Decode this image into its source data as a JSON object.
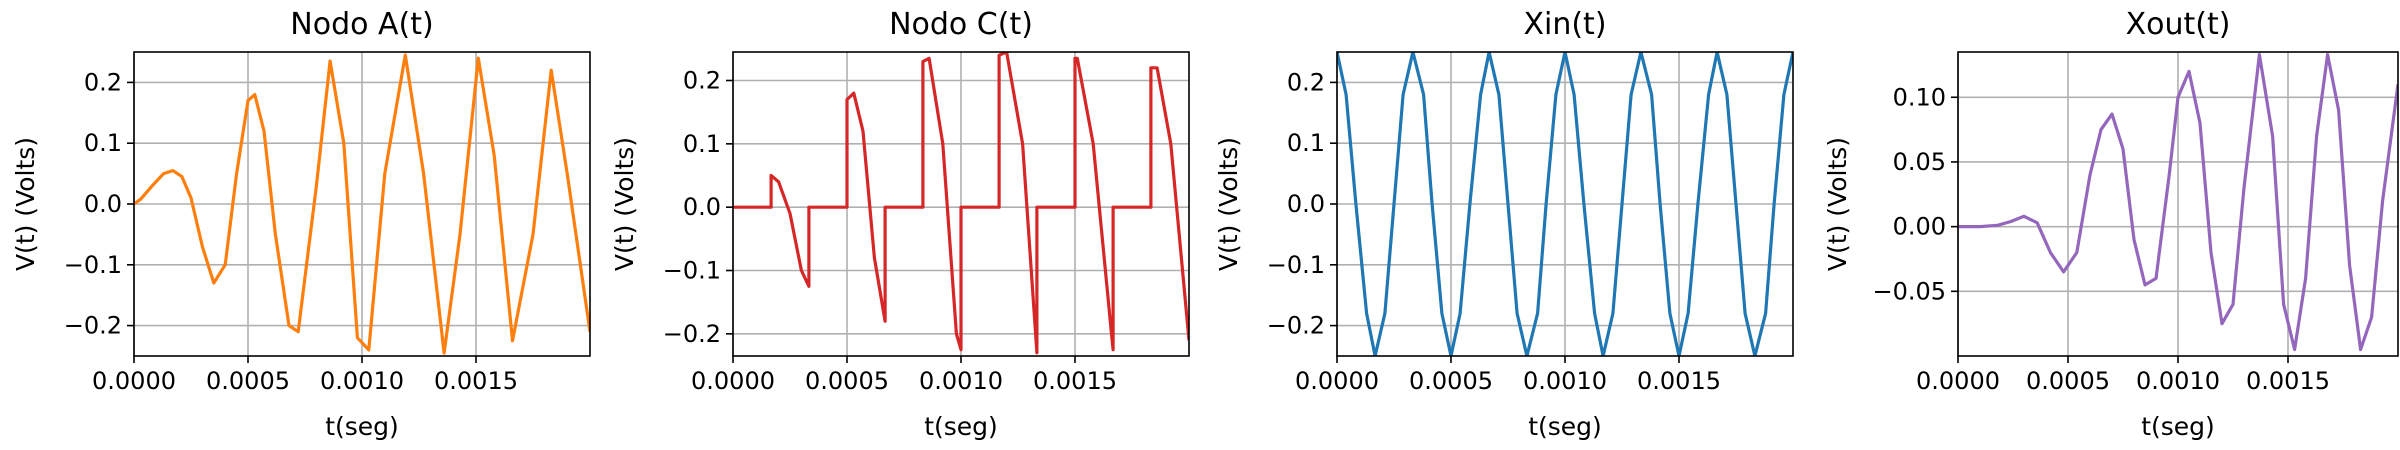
{
  "chart_data": [
    {
      "type": "line",
      "title": "Nodo A(t)",
      "xlabel": "t(seg)",
      "ylabel": "V(t) (Volts)",
      "color": "#ff7f0e",
      "xlim": [
        0,
        0.002
      ],
      "ylim": [
        -0.25,
        0.25
      ],
      "grid": true,
      "xticks": [
        0,
        0.0005,
        0.001,
        0.0015
      ],
      "xtick_labels": [
        "0.0000",
        "0.0005",
        "0.0010",
        "0.0015"
      ],
      "yticks": [
        -0.2,
        -0.1,
        0.0,
        0.1,
        0.2
      ],
      "ytick_labels": [
        "−0.2",
        "−0.1",
        "0.0",
        "0.1",
        "0.2"
      ],
      "series": [
        {
          "x": [
            0,
            3e-05,
            8e-05,
            0.00013,
            0.00017,
            0.00021,
            0.00025,
            0.0003,
            0.00035,
            0.0004,
            0.00045,
            0.0005,
            0.00053,
            0.00057,
            0.00062,
            0.00068,
            0.00072,
            0.0008,
            0.00086,
            0.00092,
            0.00098,
            0.00103,
            0.0011,
            0.00119,
            0.00127,
            0.00136,
            0.00143,
            0.00151,
            0.00158,
            0.00166,
            0.00175,
            0.00183,
            0.0019,
            0.002
          ],
          "y": [
            0,
            0.008,
            0.03,
            0.05,
            0.055,
            0.045,
            0.01,
            -0.07,
            -0.13,
            -0.1,
            0.05,
            0.17,
            0.18,
            0.12,
            -0.05,
            -0.2,
            -0.21,
            0.03,
            0.235,
            0.1,
            -0.22,
            -0.24,
            0.05,
            0.245,
            0.05,
            -0.245,
            -0.05,
            0.24,
            0.08,
            -0.225,
            -0.05,
            0.22,
            0.05,
            -0.21
          ]
        }
      ]
    },
    {
      "type": "line",
      "title": "Nodo C(t)",
      "xlabel": "t(seg)",
      "ylabel": "V(t) (Volts)",
      "color": "#d62728",
      "xlim": [
        0,
        0.002
      ],
      "ylim": [
        -0.235,
        0.245
      ],
      "grid": true,
      "xticks": [
        0,
        0.0005,
        0.001,
        0.0015
      ],
      "xtick_labels": [
        "0.0000",
        "0.0005",
        "0.0010",
        "0.0015"
      ],
      "yticks": [
        -0.2,
        -0.1,
        0.0,
        0.1,
        0.2
      ],
      "ytick_labels": [
        "−0.2",
        "−0.1",
        "0.0",
        "0.1",
        "0.2"
      ],
      "series": [
        {
          "x": [
            0,
            0.000167,
            0.000167,
            0.0002,
            0.00025,
            0.0003,
            0.000333,
            0.000333,
            0.0005,
            0.0005,
            0.00053,
            0.00057,
            0.00062,
            0.000667,
            0.000667,
            0.000833,
            0.000833,
            0.00086,
            0.00092,
            0.00098,
            0.001,
            0.001,
            0.001167,
            0.001167,
            0.0012,
            0.00127,
            0.001333,
            0.001333,
            0.0015,
            0.0015,
            0.00151,
            0.00158,
            0.00166,
            0.001667,
            0.001667,
            0.001833,
            0.001833,
            0.00186,
            0.00192,
            0.002
          ],
          "y": [
            0,
            0,
            0.05,
            0.04,
            -0.01,
            -0.1,
            -0.125,
            0,
            0,
            0.17,
            0.18,
            0.12,
            -0.08,
            -0.18,
            0,
            0,
            0.23,
            0.235,
            0.1,
            -0.2,
            -0.225,
            0,
            0,
            0.24,
            0.245,
            0.1,
            -0.23,
            0,
            0,
            0.235,
            0.235,
            0.1,
            -0.2,
            -0.225,
            0,
            0,
            0.22,
            0.22,
            0.1,
            -0.21
          ]
        }
      ]
    },
    {
      "type": "line",
      "title": "Xin(t)",
      "xlabel": "t(seg)",
      "ylabel": "V(t) (Volts)",
      "color": "#1f77b4",
      "xlim": [
        0,
        0.002
      ],
      "ylim": [
        -0.25,
        0.25
      ],
      "grid": true,
      "xticks": [
        0,
        0.0005,
        0.001,
        0.0015
      ],
      "xtick_labels": [
        "0.0000",
        "0.0005",
        "0.0010",
        "0.0015"
      ],
      "yticks": [
        -0.2,
        -0.1,
        0.0,
        0.1,
        0.2
      ],
      "ytick_labels": [
        "−0.2",
        "−0.1",
        "0.0",
        "0.1",
        "0.2"
      ],
      "series": [
        {
          "x": [
            0,
            4e-05,
            8.3e-05,
            0.00013,
            0.000167,
            0.00021,
            0.00025,
            0.00029,
            0.000333,
            0.00038,
            0.000417,
            0.00046,
            0.0005,
            0.00054,
            0.000583,
            0.00063,
            0.000667,
            0.00071,
            0.00075,
            0.00079,
            0.000833,
            0.00088,
            0.000917,
            0.00096,
            0.001,
            0.00104,
            0.001083,
            0.00113,
            0.001167,
            0.00121,
            0.00125,
            0.00129,
            0.001333,
            0.00138,
            0.001417,
            0.00146,
            0.0015,
            0.00154,
            0.001583,
            0.00163,
            0.001667,
            0.00171,
            0.00175,
            0.00179,
            0.001833,
            0.00188,
            0.001917,
            0.00196,
            0.002
          ],
          "y": [
            0.25,
            0.18,
            0,
            -0.18,
            -0.25,
            -0.18,
            0,
            0.18,
            0.25,
            0.18,
            0,
            -0.18,
            -0.25,
            -0.18,
            0,
            0.18,
            0.25,
            0.18,
            0,
            -0.18,
            -0.25,
            -0.18,
            0,
            0.18,
            0.25,
            0.18,
            0,
            -0.18,
            -0.25,
            -0.18,
            0,
            0.18,
            0.25,
            0.18,
            0,
            -0.18,
            -0.25,
            -0.18,
            0,
            0.18,
            0.25,
            0.18,
            0,
            -0.18,
            -0.25,
            -0.18,
            0,
            0.18,
            0.25
          ]
        }
      ]
    },
    {
      "type": "line",
      "title": "Xout(t)",
      "xlabel": "t(seg)",
      "ylabel": "V(t) (Volts)",
      "color": "#9467bd",
      "xlim": [
        0,
        0.002
      ],
      "ylim": [
        -0.1,
        0.135
      ],
      "grid": true,
      "xticks": [
        0,
        0.0005,
        0.001,
        0.0015
      ],
      "xtick_labels": [
        "0.0000",
        "0.0005",
        "0.0010",
        "0.0015"
      ],
      "yticks": [
        -0.05,
        0.0,
        0.05,
        0.1
      ],
      "ytick_labels": [
        "−0.05",
        "0.00",
        "0.05",
        "0.10"
      ],
      "series": [
        {
          "x": [
            0,
            0.0001,
            0.00018,
            0.00024,
            0.0003,
            0.00036,
            0.00042,
            0.00048,
            0.00054,
            0.0006,
            0.00065,
            0.0007,
            0.00075,
            0.0008,
            0.00085,
            0.0009,
            0.00096,
            0.001,
            0.00105,
            0.0011,
            0.00115,
            0.0012,
            0.00125,
            0.0013,
            0.00137,
            0.00143,
            0.00148,
            0.00153,
            0.00158,
            0.00163,
            0.00168,
            0.00173,
            0.00178,
            0.00183,
            0.00188,
            0.00193,
            0.002
          ],
          "y": [
            0,
            0,
            0.001,
            0.004,
            0.008,
            0.003,
            -0.02,
            -0.035,
            -0.02,
            0.04,
            0.075,
            0.087,
            0.06,
            -0.01,
            -0.045,
            -0.04,
            0.04,
            0.1,
            0.12,
            0.08,
            -0.02,
            -0.075,
            -0.06,
            0.03,
            0.133,
            0.07,
            -0.06,
            -0.095,
            -0.04,
            0.07,
            0.133,
            0.09,
            -0.03,
            -0.095,
            -0.07,
            0.02,
            0.11
          ]
        }
      ]
    }
  ]
}
